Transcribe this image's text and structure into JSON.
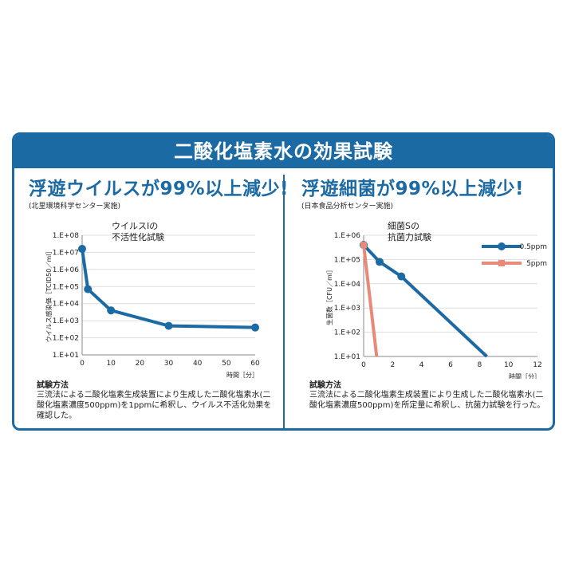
{
  "banner": {
    "title": "二酸化塩素水の効果試験"
  },
  "colors": {
    "brand": "#1c6aa3",
    "series_a": "#1c6aa3",
    "series_b": "#e8897a",
    "grid": "#dddddd"
  },
  "left": {
    "headline": "浮遊ウイルスが99%以上減少!",
    "source": "(北里環境科学センター実施)",
    "method_title": "試験方法",
    "method_body": "三流法による二酸化塩素生成装置により生成した二酸化塩素水(二酸化塩素濃度500ppm)を1ppmに希釈し、ウイルス不活化効果を確認した。"
  },
  "right": {
    "headline": "浮遊細菌が99%以上減少!",
    "source": "(日本食品分析センター実施)",
    "method_title": "試験方法",
    "method_body": "三流法による二酸化塩素生成装置により生成した二酸化塩素水(二酸化塩素濃度500ppm)を所定量に希釈し、抗菌力試験を行った。"
  },
  "chart_data": [
    {
      "type": "line",
      "title": "ウイルスIの\n不活性化試験",
      "xlabel": "時間［分］",
      "ylabel": "ウイルス感染価［TCID50／ml］",
      "xlim": [
        0,
        60
      ],
      "x_ticks": [
        0,
        10,
        20,
        30,
        40,
        50,
        60
      ],
      "ylim_log10": [
        1,
        8
      ],
      "y_tick_labels": [
        "1.E+01",
        "1.E+02",
        "1.E+03",
        "1.E+04",
        "1.E+05",
        "1.E+06",
        "1.E+07",
        "1.E+08"
      ],
      "y_scale": "log",
      "grid": "horizontal",
      "series": [
        {
          "x": [
            0,
            2,
            10,
            30,
            60
          ],
          "y": [
            16000000,
            70000,
            4000,
            500,
            400
          ]
        }
      ]
    },
    {
      "type": "line",
      "title": "細菌Sの\n抗菌力試験",
      "xlabel": "時間［分］",
      "ylabel": "生菌数［CFU／ml］",
      "xlim": [
        0,
        12
      ],
      "x_ticks": [
        0,
        2,
        4,
        6,
        8,
        10,
        12
      ],
      "ylim_log10": [
        1,
        6
      ],
      "y_tick_labels": [
        "1.E+01",
        "1.E+02",
        "1.E+03",
        "1.E+04",
        "1.E+05",
        "1.E+06"
      ],
      "y_scale": "log",
      "grid": "horizontal",
      "legend_position": "top-right",
      "series": [
        {
          "name": "0.5ppm",
          "x": [
            0,
            1.1,
            2.6,
            8.5
          ],
          "y": [
            400000,
            80000,
            20000,
            10
          ]
        },
        {
          "name": "5ppm",
          "x": [
            0,
            0.9
          ],
          "y": [
            400000,
            10
          ]
        }
      ]
    }
  ]
}
